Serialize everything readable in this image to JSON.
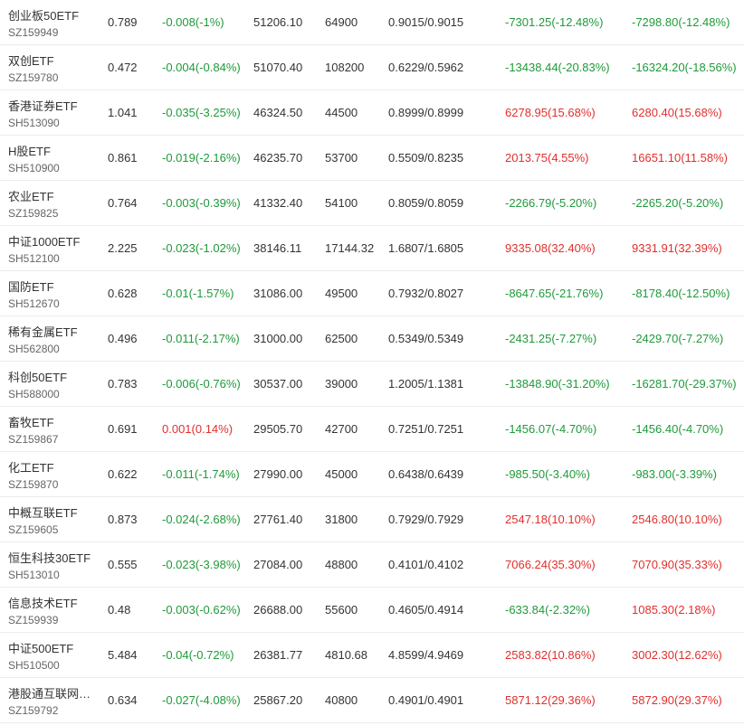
{
  "rows": [
    {
      "name": "创业板50ETF",
      "code": "SZ159949",
      "price": "0.789",
      "change": "-0.008(-1%)",
      "direction": "down",
      "amount": "51206.10",
      "volume": "64900",
      "nav": "0.9015/0.9015",
      "premium1": "-7301.25(-12.48%)",
      "premium1_dir": "down",
      "premium2": "-7298.80(-12.48%)",
      "premium2_dir": "down"
    },
    {
      "name": "双创ETF",
      "code": "SZ159780",
      "price": "0.472",
      "change": "-0.004(-0.84%)",
      "direction": "down",
      "amount": "51070.40",
      "volume": "108200",
      "nav": "0.6229/0.5962",
      "premium1": "-13438.44(-20.83%)",
      "premium1_dir": "down",
      "premium2": "-16324.20(-18.56%)",
      "premium2_dir": "down"
    },
    {
      "name": "香港证券ETF",
      "code": "SH513090",
      "price": "1.041",
      "change": "-0.035(-3.25%)",
      "direction": "down",
      "amount": "46324.50",
      "volume": "44500",
      "nav": "0.8999/0.8999",
      "premium1": "6278.95(15.68%)",
      "premium1_dir": "up",
      "premium2": "6280.40(15.68%)",
      "premium2_dir": "up"
    },
    {
      "name": "H股ETF",
      "code": "SH510900",
      "price": "0.861",
      "change": "-0.019(-2.16%)",
      "direction": "down",
      "amount": "46235.70",
      "volume": "53700",
      "nav": "0.5509/0.8235",
      "premium1": "2013.75(4.55%)",
      "premium1_dir": "up",
      "premium2": "16651.10(11.58%)",
      "premium2_dir": "up"
    },
    {
      "name": "农业ETF",
      "code": "SZ159825",
      "price": "0.764",
      "change": "-0.003(-0.39%)",
      "direction": "down",
      "amount": "41332.40",
      "volume": "54100",
      "nav": "0.8059/0.8059",
      "premium1": "-2266.79(-5.20%)",
      "premium1_dir": "down",
      "premium2": "-2265.20(-5.20%)",
      "premium2_dir": "down"
    },
    {
      "name": "中证1000ETF",
      "code": "SH512100",
      "price": "2.225",
      "change": "-0.023(-1.02%)",
      "direction": "down",
      "amount": "38146.11",
      "volume": "17144.32",
      "nav": "1.6807/1.6805",
      "premium1": "9335.08(32.40%)",
      "premium1_dir": "up",
      "premium2": "9331.91(32.39%)",
      "premium2_dir": "up"
    },
    {
      "name": "国防ETF",
      "code": "SH512670",
      "price": "0.628",
      "change": "-0.01(-1.57%)",
      "direction": "down",
      "amount": "31086.00",
      "volume": "49500",
      "nav": "0.7932/0.8027",
      "premium1": "-8647.65(-21.76%)",
      "premium1_dir": "down",
      "premium2": "-8178.40(-12.50%)",
      "premium2_dir": "down"
    },
    {
      "name": "稀有金属ETF",
      "code": "SH562800",
      "price": "0.496",
      "change": "-0.011(-2.17%)",
      "direction": "down",
      "amount": "31000.00",
      "volume": "62500",
      "nav": "0.5349/0.5349",
      "premium1": "-2431.25(-7.27%)",
      "premium1_dir": "down",
      "premium2": "-2429.70(-7.27%)",
      "premium2_dir": "down"
    },
    {
      "name": "科创50ETF",
      "code": "SH588000",
      "price": "0.783",
      "change": "-0.006(-0.76%)",
      "direction": "down",
      "amount": "30537.00",
      "volume": "39000",
      "nav": "1.2005/1.1381",
      "premium1": "-13848.90(-31.20%)",
      "premium1_dir": "down",
      "premium2": "-16281.70(-29.37%)",
      "premium2_dir": "down"
    },
    {
      "name": "畜牧ETF",
      "code": "SZ159867",
      "price": "0.691",
      "change": "0.001(0.14%)",
      "direction": "up",
      "amount": "29505.70",
      "volume": "42700",
      "nav": "0.7251/0.7251",
      "premium1": "-1456.07(-4.70%)",
      "premium1_dir": "down",
      "premium2": "-1456.40(-4.70%)",
      "premium2_dir": "down"
    },
    {
      "name": "化工ETF",
      "code": "SZ159870",
      "price": "0.622",
      "change": "-0.011(-1.74%)",
      "direction": "down",
      "amount": "27990.00",
      "volume": "45000",
      "nav": "0.6438/0.6439",
      "premium1": "-985.50(-3.40%)",
      "premium1_dir": "down",
      "premium2": "-983.00(-3.39%)",
      "premium2_dir": "down"
    },
    {
      "name": "中概互联ETF",
      "code": "SZ159605",
      "price": "0.873",
      "change": "-0.024(-2.68%)",
      "direction": "down",
      "amount": "27761.40",
      "volume": "31800",
      "nav": "0.7929/0.7929",
      "premium1": "2547.18(10.10%)",
      "premium1_dir": "up",
      "premium2": "2546.80(10.10%)",
      "premium2_dir": "up"
    },
    {
      "name": "恒生科技30ETF",
      "code": "SH513010",
      "price": "0.555",
      "change": "-0.023(-3.98%)",
      "direction": "down",
      "amount": "27084.00",
      "volume": "48800",
      "nav": "0.4101/0.4102",
      "premium1": "7066.24(35.30%)",
      "premium1_dir": "up",
      "premium2": "7070.90(35.33%)",
      "premium2_dir": "up"
    },
    {
      "name": "信息技术ETF",
      "code": "SZ159939",
      "price": "0.48",
      "change": "-0.003(-0.62%)",
      "direction": "down",
      "amount": "26688.00",
      "volume": "55600",
      "nav": "0.4605/0.4914",
      "premium1": "-633.84(-2.32%)",
      "premium1_dir": "down",
      "premium2": "1085.30(2.18%)",
      "premium2_dir": "up"
    },
    {
      "name": "中证500ETF",
      "code": "SH510500",
      "price": "5.484",
      "change": "-0.04(-0.72%)",
      "direction": "down",
      "amount": "26381.77",
      "volume": "4810.68",
      "nav": "4.8599/4.9469",
      "premium1": "2583.82(10.86%)",
      "premium1_dir": "up",
      "premium2": "3002.30(12.62%)",
      "premium2_dir": "up"
    },
    {
      "name": "港股通互联网…",
      "code": "SZ159792",
      "price": "0.634",
      "change": "-0.027(-4.08%)",
      "direction": "down",
      "amount": "25867.20",
      "volume": "40800",
      "nav": "0.4901/0.4901",
      "premium1": "5871.12(29.36%)",
      "premium1_dir": "up",
      "premium2": "5872.90(29.37%)",
      "premium2_dir": "up"
    }
  ],
  "colors": {
    "up": "#e0302d",
    "down": "#1f9a3a",
    "text": "#333333",
    "code": "#666666",
    "divider": "#ececec"
  }
}
